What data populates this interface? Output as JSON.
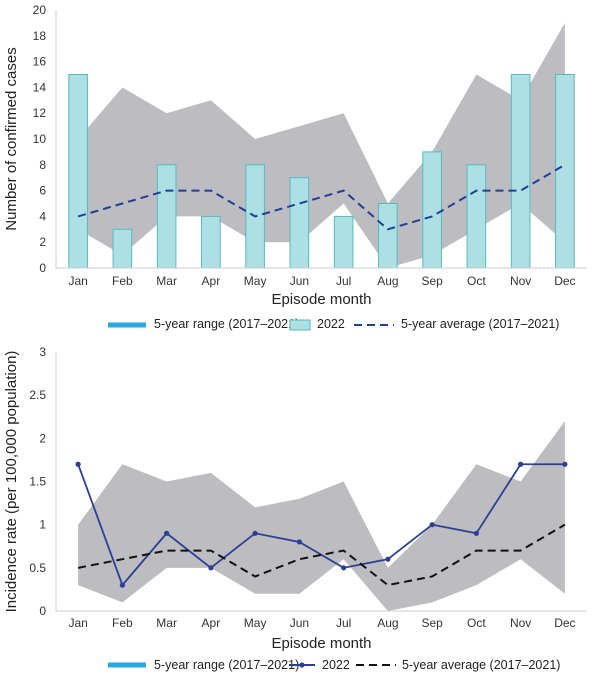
{
  "chart_data": [
    {
      "type": "bar",
      "categories": [
        "Jan",
        "Feb",
        "Mar",
        "Apr",
        "May",
        "Jun",
        "Jul",
        "Aug",
        "Sep",
        "Oct",
        "Nov",
        "Dec"
      ],
      "xlabel": "Episode month",
      "ylabel": "Number of confirmed cases",
      "ylim": [
        0,
        20
      ],
      "yticks": [
        0,
        2,
        4,
        6,
        8,
        10,
        12,
        14,
        16,
        18,
        20
      ],
      "grid": false,
      "legend_position": "bottom",
      "series": [
        {
          "name": "5-year range (2017–2021)",
          "kind": "range",
          "min": [
            3,
            1,
            4,
            4,
            2,
            2,
            5,
            0,
            1,
            3,
            5,
            2
          ],
          "max": [
            10,
            14,
            12,
            13,
            10,
            11,
            12,
            5,
            9,
            15,
            13,
            19
          ],
          "color": "#bdbdc1",
          "legend_color": "#29a9e0"
        },
        {
          "name": "2022",
          "kind": "bar",
          "values": [
            15,
            3,
            8,
            4,
            8,
            7,
            4,
            5,
            9,
            8,
            15,
            15
          ],
          "color": "#ade0e4",
          "stroke": "#55b9c2"
        },
        {
          "name": "5-year average (2017–2021)",
          "kind": "dashed-line",
          "values": [
            4,
            5,
            6,
            6,
            4,
            5,
            6,
            3,
            4,
            6,
            6,
            8
          ],
          "color": "#1f3f96"
        }
      ]
    },
    {
      "type": "line",
      "categories": [
        "Jan",
        "Feb",
        "Mar",
        "Apr",
        "May",
        "Jun",
        "Jul",
        "Aug",
        "Sep",
        "Oct",
        "Nov",
        "Dec"
      ],
      "xlabel": "Episode month",
      "ylabel": "Incidence rate (per 100,000 population)",
      "ylim": [
        0,
        3
      ],
      "yticks": [
        "0",
        "0.5",
        "1",
        "1.5",
        "2",
        "2.5",
        "3"
      ],
      "grid": false,
      "legend_position": "bottom",
      "series": [
        {
          "name": "5-year range (2017–2021)",
          "kind": "range",
          "min": [
            0.3,
            0.1,
            0.5,
            0.5,
            0.2,
            0.2,
            0.6,
            0.0,
            0.1,
            0.3,
            0.6,
            0.2
          ],
          "max": [
            1.0,
            1.7,
            1.5,
            1.6,
            1.2,
            1.3,
            1.5,
            0.5,
            1.0,
            1.7,
            1.5,
            2.2
          ],
          "color": "#bdbdc1",
          "legend_color": "#29a9e0"
        },
        {
          "name": "2022",
          "kind": "line-markers",
          "values": [
            1.7,
            0.3,
            0.9,
            0.5,
            0.9,
            0.8,
            0.5,
            0.6,
            1.0,
            0.9,
            1.7,
            1.7
          ],
          "color": "#2b3f96"
        },
        {
          "name": "5-year average (2017–2021)",
          "kind": "dashed-line",
          "values": [
            0.5,
            0.6,
            0.7,
            0.7,
            0.4,
            0.6,
            0.7,
            0.3,
            0.4,
            0.7,
            0.7,
            1.0
          ],
          "color": "#111111"
        }
      ]
    }
  ]
}
